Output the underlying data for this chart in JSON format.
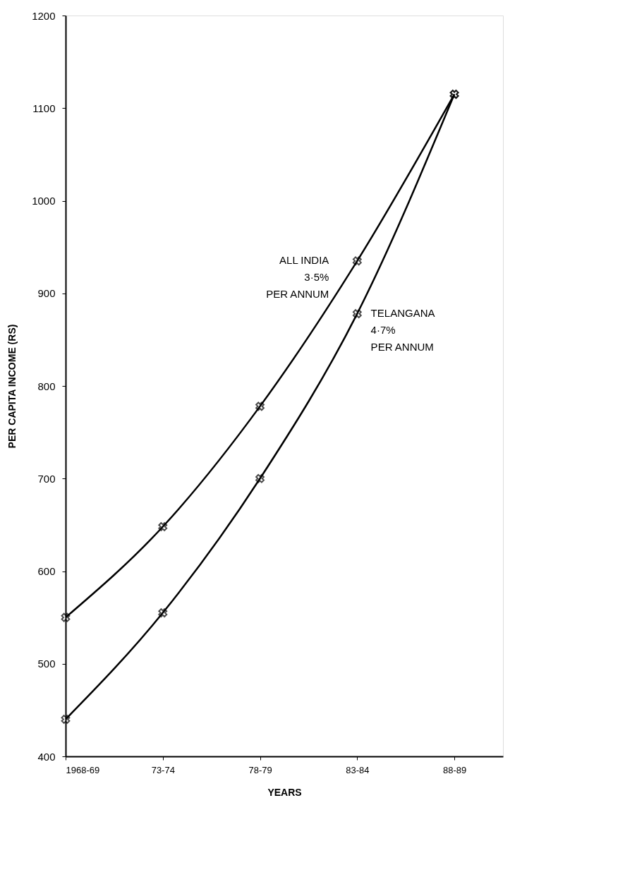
{
  "chart_data": {
    "type": "line",
    "xlabel": "YEARS",
    "ylabel": "PER CAPITA INCOME (RS)",
    "categories": [
      "1968-69",
      "73-74",
      "78-79",
      "83-84",
      "88-89"
    ],
    "series": [
      {
        "name": "ALL INDIA",
        "color": "#000000",
        "values": [
          550,
          648,
          778,
          935,
          1115
        ]
      },
      {
        "name": "TELANGANA",
        "color": "#000000",
        "values": [
          440,
          555,
          700,
          878,
          1115
        ]
      }
    ],
    "annotations": [
      "3·5% PER ANNUM",
      "4·7% PER ANNUM"
    ],
    "ylim": [
      400,
      1200
    ],
    "yticks": [
      400,
      500,
      600,
      700,
      800,
      900,
      1000,
      1100,
      1200
    ],
    "grid": false,
    "marker": "cross",
    "line_style": "solid"
  }
}
